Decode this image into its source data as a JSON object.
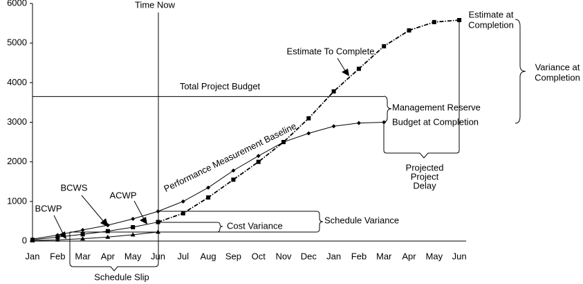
{
  "chart_data": {
    "type": "line",
    "categories": [
      "Jan",
      "Feb",
      "Mar",
      "Apr",
      "May",
      "Jun",
      "Jul",
      "Aug",
      "Sep",
      "Oct",
      "Nov",
      "Dec",
      "Jan",
      "Feb",
      "Mar",
      "Apr",
      "May",
      "Jun"
    ],
    "ylim": [
      0,
      6000
    ],
    "yticks": [
      0,
      1000,
      2000,
      3000,
      4000,
      5000,
      6000
    ],
    "series": [
      {
        "name": "BCWS",
        "color": "#000000",
        "marker": "diamond",
        "line_style": "solid",
        "values": [
          50,
          150,
          280,
          400,
          560,
          750,
          1000,
          1350,
          1780,
          2150,
          2500,
          2720,
          2900,
          2980,
          3000,
          null,
          null,
          null
        ]
      },
      {
        "name": "ACWP",
        "color": "#000000",
        "marker": "square",
        "line_style": "solid",
        "values": [
          30,
          100,
          170,
          250,
          350,
          480,
          null,
          null,
          null,
          null,
          null,
          null,
          null,
          null,
          null,
          null,
          null,
          null
        ]
      },
      {
        "name": "Estimate To Complete",
        "color": "#000000",
        "marker": "square",
        "line_style": "dashdot",
        "values": [
          null,
          null,
          null,
          null,
          null,
          480,
          700,
          1100,
          1550,
          2000,
          2500,
          3100,
          3780,
          4350,
          4920,
          5320,
          5530,
          5580
        ]
      },
      {
        "name": "BCWP",
        "color": "#000000",
        "marker": "triangle",
        "line_style": "solid",
        "values": [
          10,
          30,
          60,
          100,
          160,
          230,
          null,
          null,
          null,
          null,
          null,
          null,
          null,
          null,
          null,
          null,
          null,
          null
        ]
      }
    ],
    "reference_line": {
      "label": "Total Project Budget",
      "value": 3650
    },
    "annotations": [
      "Time Now",
      "Management Reserve",
      "Budget at Completion",
      [
        "Estimate at",
        "Completion"
      ],
      [
        "Variance at",
        "Completion"
      ],
      "Performance Measurement Baseline",
      "Cost Variance",
      "Schedule Variance",
      "Schedule Slip",
      [
        "Projected",
        "Project",
        "Delay"
      ]
    ]
  }
}
